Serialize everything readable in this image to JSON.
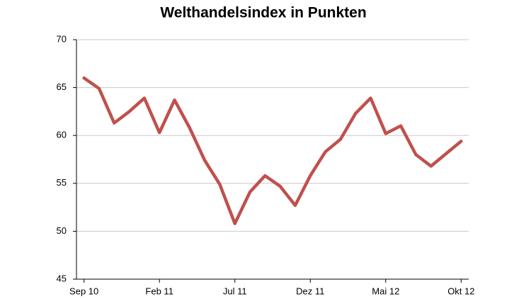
{
  "chart_data": {
    "type": "line",
    "title": "Welthandelsindex in Punkten",
    "categories": [
      "Sep 10",
      null,
      null,
      null,
      null,
      "Feb 11",
      null,
      null,
      null,
      null,
      "Jul 11",
      null,
      null,
      null,
      null,
      "Dez 11",
      null,
      null,
      null,
      null,
      "Mai 12",
      null,
      null,
      null,
      null,
      "Okt 12"
    ],
    "series": [
      {
        "name": "Welthandelsindex",
        "color": "#c0504d",
        "values": [
          66.0,
          64.9,
          61.3,
          62.5,
          63.9,
          60.3,
          63.7,
          60.8,
          57.4,
          54.9,
          50.8,
          54.1,
          55.8,
          54.7,
          52.7,
          55.8,
          58.3,
          59.6,
          62.3,
          63.9,
          60.2,
          61.0,
          58.0,
          56.8,
          58.1,
          59.4
        ]
      }
    ],
    "ylim": [
      45,
      70
    ],
    "yticks": [
      45,
      50,
      55,
      60,
      65,
      70
    ],
    "grid": true
  }
}
